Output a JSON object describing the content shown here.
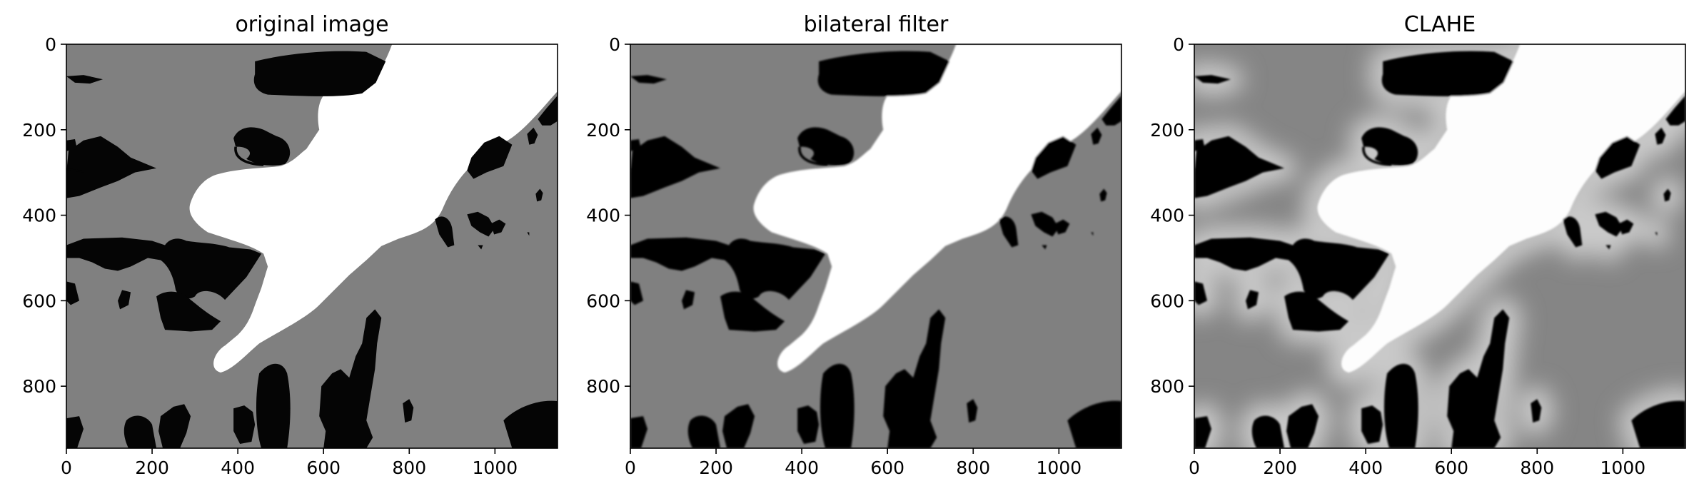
{
  "chart_data": [
    {
      "type": "image",
      "title": "original image",
      "style": "sharp",
      "xlim": [
        0,
        1146
      ],
      "ylim": [
        945,
        0
      ],
      "xticks": [
        0,
        200,
        400,
        600,
        800,
        1000
      ],
      "yticks": [
        0,
        200,
        400,
        600,
        800
      ],
      "colors": {
        "background": "#808080",
        "dark": "#050505",
        "bright": "#ffffff"
      }
    },
    {
      "type": "image",
      "title": "bilateral filter",
      "style": "smoothed",
      "xlim": [
        0,
        1146
      ],
      "ylim": [
        945,
        0
      ],
      "xticks": [
        0,
        200,
        400,
        600,
        800,
        1000
      ],
      "yticks": [
        0,
        200,
        400,
        600,
        800
      ],
      "colors": {
        "background": "#808080",
        "dark": "#050505",
        "bright": "#ffffff"
      }
    },
    {
      "type": "image",
      "title": "CLAHE",
      "style": "clahe",
      "xlim": [
        0,
        1146
      ],
      "ylim": [
        945,
        0
      ],
      "xticks": [
        0,
        200,
        400,
        600,
        800,
        1000
      ],
      "yticks": [
        0,
        200,
        400,
        600,
        800
      ],
      "colors": {
        "background": "#858585",
        "dark": "#050505",
        "bright": "#fdfdfd",
        "halo": "#c9c9c9"
      }
    }
  ]
}
